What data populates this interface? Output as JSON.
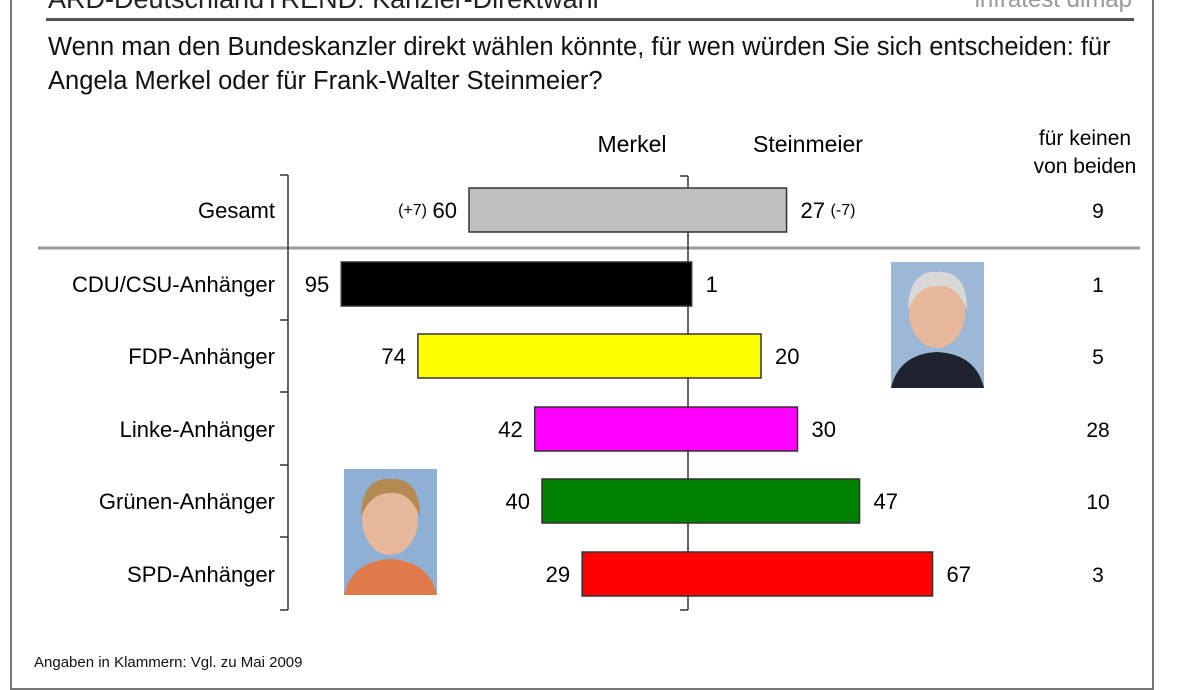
{
  "header": {
    "title": "ARD-DeutschlandTREND: Kanzler-Direktwahl",
    "brand": "infratest dimap",
    "question": "Wenn man den Bundeskanzler direkt wählen könnte, für wen würden Sie sich entscheiden: für Angela Merkel oder für Frank-Walter Steinmeier?"
  },
  "footnote": "Angaben in Klammern: Vgl. zu Mai 2009",
  "chart_data": {
    "type": "bar",
    "orientation": "horizontal-diverging",
    "column_headers": {
      "left": "Merkel",
      "right": "Steinmeier",
      "neither": [
        "für keinen",
        "von beiden"
      ]
    },
    "categories": [
      "Gesamt",
      "CDU/CSU-Anhänger",
      "FDP-Anhänger",
      "Linke-Anhänger",
      "Grünen-Anhänger",
      "SPD-Anhänger"
    ],
    "series": [
      {
        "name": "Merkel",
        "values": [
          60,
          95,
          74,
          42,
          40,
          29
        ]
      },
      {
        "name": "Steinmeier",
        "values": [
          27,
          1,
          20,
          30,
          47,
          67
        ]
      },
      {
        "name": "für keinen von beiden",
        "values": [
          9,
          1,
          5,
          28,
          10,
          3
        ]
      }
    ],
    "changes": {
      "Merkel": "(+7)",
      "Steinmeier": "(-7)"
    },
    "colors": [
      "#c0c0c0",
      "#000000",
      "#ffff00",
      "#ff00ff",
      "#008000",
      "#ff0000"
    ],
    "photos": {
      "Merkel": "portrait",
      "Steinmeier": "portrait"
    }
  }
}
